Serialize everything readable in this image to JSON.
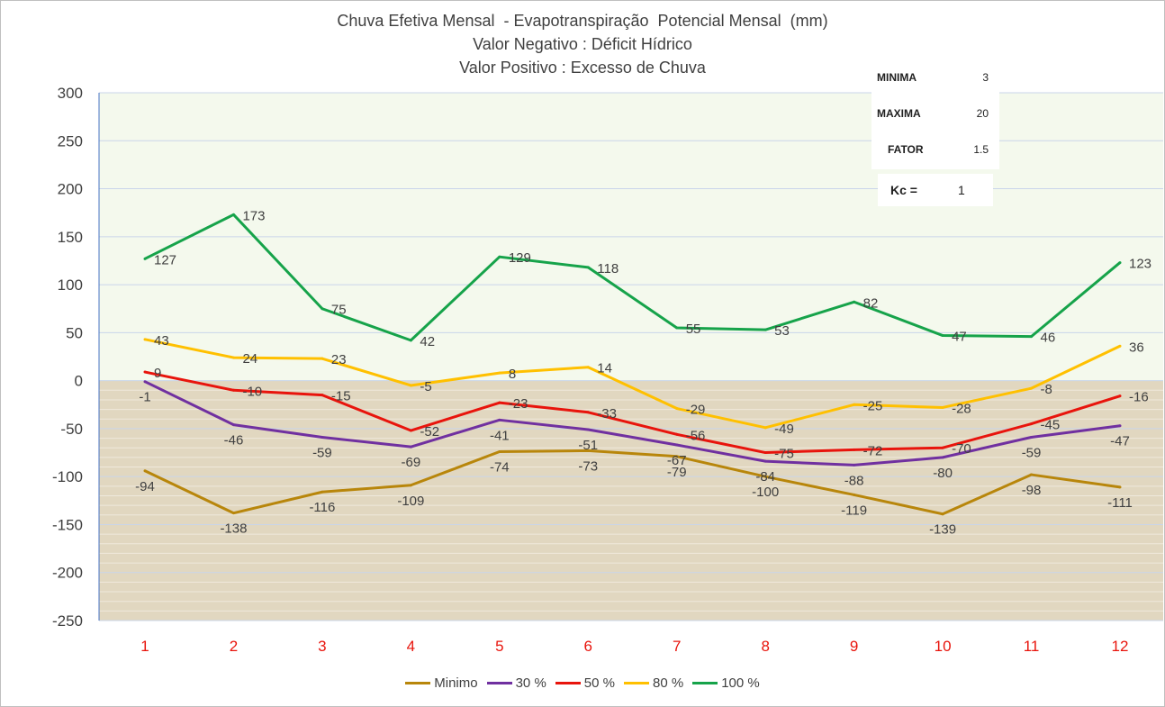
{
  "chart_data": {
    "type": "line",
    "title": [
      "Chuva Efetiva Mensal  - Evapotranspiração  Potencial Mensal  (mm)",
      "Valor Negativo : Déficit Hídrico",
      "Valor Positivo : Excesso de Chuva"
    ],
    "categories": [
      "1",
      "2",
      "3",
      "4",
      "5",
      "6",
      "7",
      "8",
      "9",
      "10",
      "11",
      "12"
    ],
    "ylim": [
      -250,
      300
    ],
    "ytick_step": 50,
    "grid": true,
    "legend_position": "bottom",
    "series": [
      {
        "name": "Minimo",
        "color": "#b8860b",
        "values": [
          -94,
          -138,
          -116,
          -109,
          -74,
          -73,
          -79,
          -100,
          -119,
          -139,
          -98,
          -111
        ],
        "label_pos": "below"
      },
      {
        "name": "30 %",
        "color": "#7030a0",
        "values": [
          -1,
          -46,
          -59,
          -69,
          -41,
          -51,
          -67,
          -84,
          -88,
          -80,
          -59,
          -47
        ],
        "label_pos": "below"
      },
      {
        "name": "50 %",
        "color": "#e8140c",
        "values": [
          9,
          -10,
          -15,
          -52,
          -23,
          -33,
          -56,
          -75,
          -72,
          -70,
          -45,
          -16
        ],
        "label_pos": "right"
      },
      {
        "name": "80 %",
        "color": "#ffc000",
        "values": [
          43,
          24,
          23,
          -5,
          8,
          14,
          -29,
          -49,
          -25,
          -28,
          -8,
          36
        ],
        "label_pos": "right"
      },
      {
        "name": "100 %",
        "color": "#16a34a",
        "values": [
          127,
          173,
          75,
          42,
          129,
          118,
          55,
          53,
          82,
          47,
          46,
          123
        ],
        "label_pos": "right"
      }
    ]
  },
  "info": {
    "rows": [
      {
        "label": "MINIMA",
        "value": "3"
      },
      {
        "label": "MAXIMA",
        "value": "20"
      },
      {
        "label": "FATOR",
        "value": "1.5"
      }
    ],
    "kc_label": "Kc =",
    "kc_value": "1"
  },
  "colors": {
    "positive_region": "#f4f9ed",
    "negative_region": "#e1d7c0",
    "grid": "#c9d5ea",
    "xtick": "#e8140c",
    "ytick": "#404040"
  }
}
